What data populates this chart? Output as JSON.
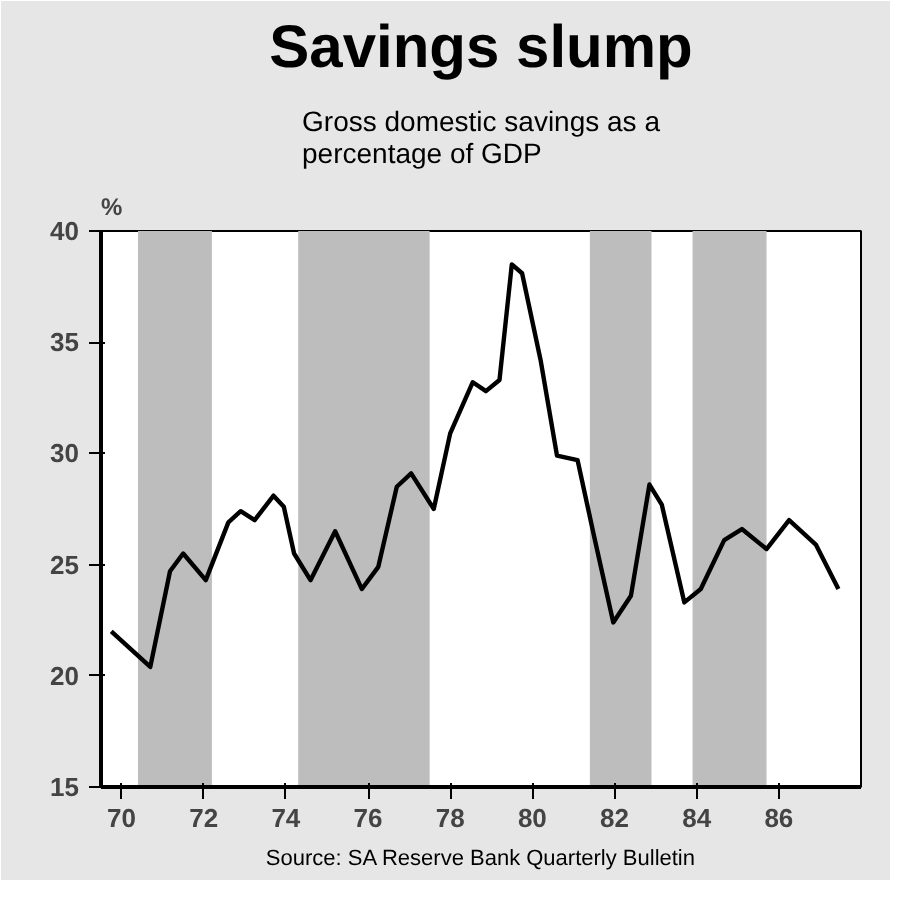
{
  "chart_data": {
    "type": "line",
    "title": "Savings slump",
    "subtitle": "Gross domestic savings as a percentage of GDP",
    "ylabel": "%",
    "annotations": [
      "Source: SA Reserve Bank Quarterly Bulletin"
    ],
    "x": [
      1969.75,
      1970.7,
      1971.18,
      1971.5,
      1972.05,
      1972.6,
      1972.9,
      1973.24,
      1973.7,
      1973.95,
      1974.2,
      1974.6,
      1975.2,
      1975.85,
      1976.25,
      1976.7,
      1977.05,
      1977.6,
      1978.0,
      1978.55,
      1978.87,
      1979.2,
      1979.5,
      1979.75,
      1980.2,
      1980.6,
      1981.1,
      1981.5,
      1981.97,
      1982.4,
      1982.85,
      1983.15,
      1983.7,
      1984.1,
      1984.67,
      1985.1,
      1985.7,
      1986.25,
      1986.9,
      1987.45
    ],
    "series": [
      {
        "color": "#000000",
        "values": [
          22.0,
          20.4,
          24.7,
          25.5,
          24.3,
          26.9,
          27.4,
          27.0,
          28.1,
          27.6,
          25.5,
          24.3,
          26.5,
          23.9,
          24.9,
          28.5,
          29.1,
          27.5,
          30.9,
          33.2,
          32.8,
          33.3,
          38.5,
          38.1,
          34.2,
          29.9,
          29.7,
          26.3,
          22.4,
          23.6,
          28.6,
          27.7,
          23.3,
          23.9,
          26.1,
          26.6,
          25.7,
          27.0,
          25.9,
          23.9
        ]
      }
    ],
    "xlim": [
      1969.5,
      1988
    ],
    "xticks": [
      {
        "value": 1970,
        "label": "70"
      },
      {
        "value": 1972,
        "label": "72"
      },
      {
        "value": 1974,
        "label": "74"
      },
      {
        "value": 1976,
        "label": "76"
      },
      {
        "value": 1978,
        "label": "78"
      },
      {
        "value": 1980,
        "label": "80"
      },
      {
        "value": 1982,
        "label": "82"
      },
      {
        "value": 1984,
        "label": "84"
      },
      {
        "value": 1986,
        "label": "86"
      }
    ],
    "ylim": [
      15,
      40
    ],
    "yticks": [
      15,
      20,
      25,
      30,
      35,
      40
    ],
    "bands": [
      {
        "axis": "x",
        "from": 1970.4,
        "to": 1972.2,
        "color": "#bdbdbd"
      },
      {
        "axis": "x",
        "from": 1974.3,
        "to": 1977.5,
        "color": "#bdbdbd"
      },
      {
        "axis": "x",
        "from": 1981.4,
        "to": 1982.9,
        "color": "#bdbdbd"
      },
      {
        "axis": "x",
        "from": 1983.9,
        "to": 1985.7,
        "color": "#bdbdbd"
      }
    ],
    "grid": false,
    "line_style": "solid",
    "marker": "none"
  }
}
